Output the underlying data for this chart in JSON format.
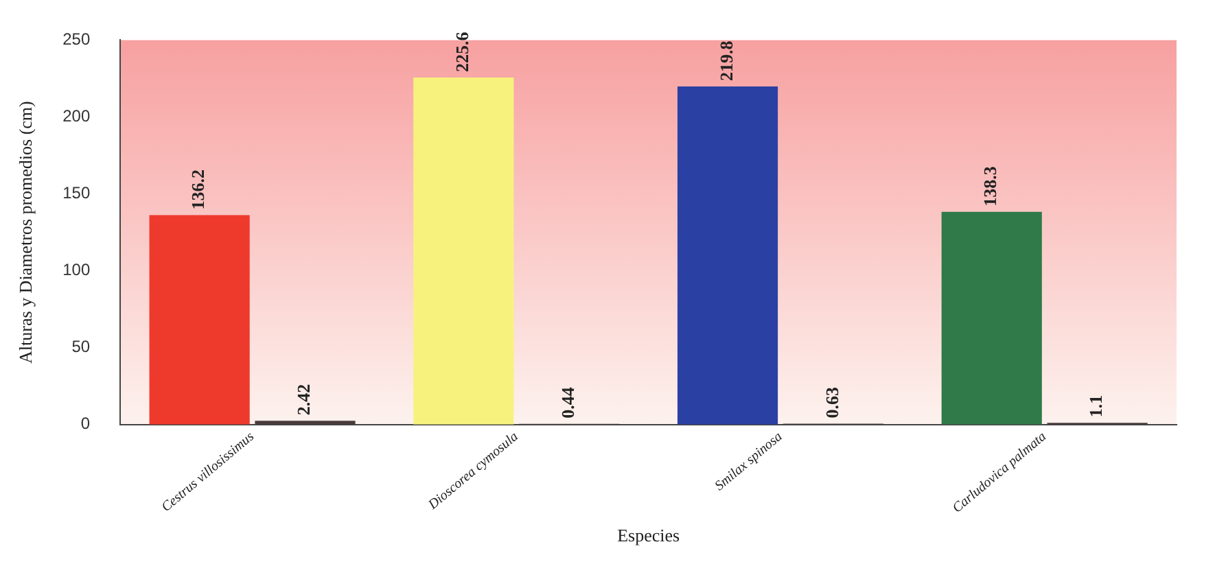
{
  "chart_data": {
    "type": "bar",
    "xlabel": "Especies",
    "ylabel": "Alturas y Diametros promedios (cm)",
    "categories": [
      "Cestrus villosissimus",
      "Dioscorea cymosula",
      "Smilax spinosa",
      "Carludovica palmata"
    ],
    "series": [
      {
        "colors": [
          "#ee3a2c",
          "#f7f27e",
          "#2b40a3",
          "#2f7a48"
        ],
        "values": [
          136.2,
          225.6,
          219.8,
          138.3
        ]
      },
      {
        "color": "#4a3c3c",
        "values": [
          2.42,
          0.44,
          0.63,
          1.1
        ]
      }
    ],
    "ylim": [
      0,
      250
    ],
    "yticks": [
      0,
      50,
      100,
      150,
      200,
      250
    ],
    "data_labels": true,
    "grid": false,
    "legend": false
  }
}
